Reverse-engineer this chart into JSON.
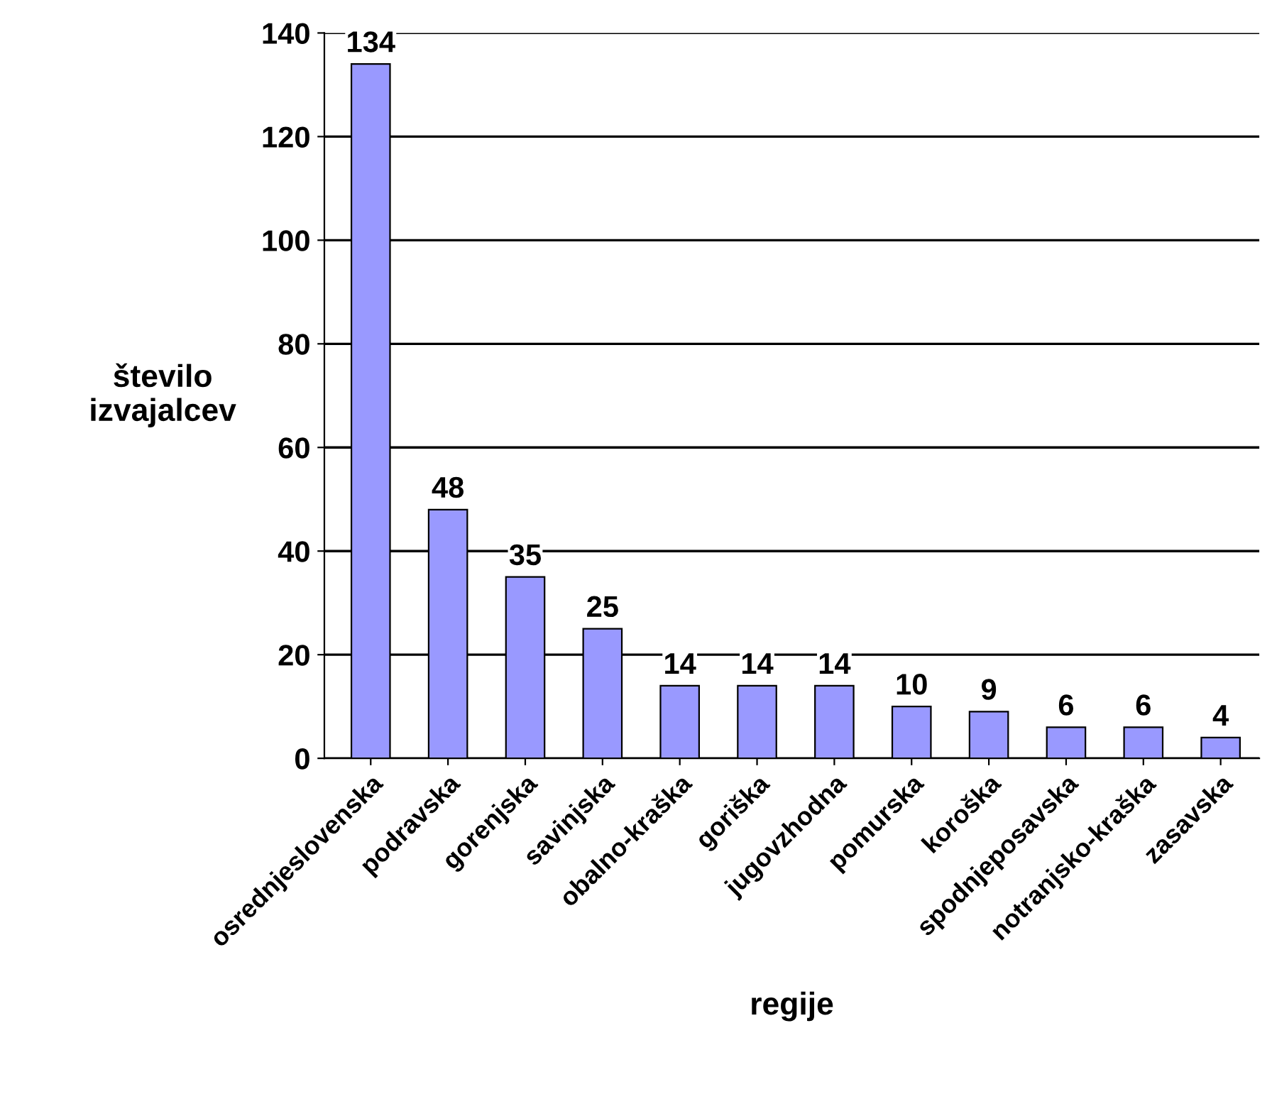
{
  "chart_data": {
    "type": "bar",
    "xlabel": "regije",
    "ylabel": "število\nizvajalcev",
    "categories": [
      "osrednjeslovenska",
      "podravska",
      "gorenjska",
      "savinjska",
      "obalno-kraška",
      "goriška",
      "jugovzhodna",
      "pomurska",
      "koroška",
      "spodnjeposavska",
      "notranjsko-kraška",
      "zasavska"
    ],
    "values": [
      134,
      48,
      35,
      25,
      14,
      14,
      14,
      10,
      9,
      6,
      6,
      4
    ],
    "color": "#9999ff",
    "ylim": [
      0,
      140
    ],
    "yticks": [
      0,
      20,
      40,
      60,
      80,
      100,
      120,
      140
    ],
    "grid": "y",
    "data_labels": true
  }
}
